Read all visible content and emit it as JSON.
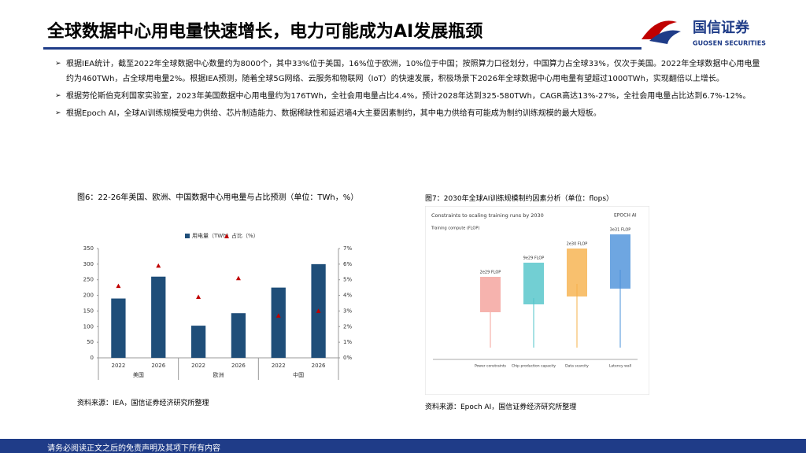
{
  "header": {
    "title": "全球数据中心用电量快速增长，电力可能成为AI发展瓶颈",
    "logo": "国信证券",
    "logo_en": "GUOSEN SECURITIES"
  },
  "bullets": [
    "根据IEA统计，截至2022年全球数据中心数量约为8000个，其中33%位于美国，16%位于欧洲，10%位于中国；按照算力口径划分，中国算力占全球33%，仅次于美国。2022年全球数据中心用电量约为460TWh，占全球用电量2%。根据IEA预测，随着全球5G网络、云服务和物联网（IoT）的快速发展，积极场景下2026年全球数据中心用电量有望超过1000TWh，实现翻倍以上增长。",
    "根据劳伦斯伯克利国家实验室，2023年美国数据中心用电量约为176TWh，全社会用电量占比4.4%，预计2028年达到325-580TWh，CAGR高达13%-27%，全社会用电量占比达到6.7%-12%。",
    "根据Epoch AI，全球AI训练规模受电力供给、芯片制造能力、数据稀缺性和延迟墙4大主要因素制约，其中电力供给有可能成为制约训练规模的最大短板。"
  ],
  "chart_data": {
    "type": "bar",
    "title": "图6：22-26年美国、欧洲、中国数据中心用电量与占比预测（单位：TWh，%）",
    "categories": [
      "2022",
      "2026",
      "2022",
      "2026",
      "2022",
      "2026"
    ],
    "groups": [
      "美国",
      "欧洲",
      "中国"
    ],
    "series": [
      {
        "name": "用电量（TWh）",
        "color": "#1f4e79",
        "values": [
          190,
          260,
          103,
          143,
          225,
          300
        ]
      },
      {
        "name": "占比（%）",
        "color": "#c00000",
        "axis": "y2",
        "values": [
          4.6,
          5.9,
          3.9,
          5.1,
          2.7,
          3.0
        ]
      }
    ],
    "ylim": [
      0,
      350
    ],
    "yticks": [
      0,
      50,
      100,
      150,
      200,
      250,
      300,
      350
    ],
    "y2lim": [
      0,
      7
    ],
    "y2ticks": [
      {
        "value": 0,
        "label": "0%"
      },
      {
        "value": 1,
        "label": "1%"
      },
      {
        "value": 2,
        "label": "2%"
      },
      {
        "value": 3,
        "label": "3%"
      },
      {
        "value": 4,
        "label": "4%"
      },
      {
        "value": 5,
        "label": "5%"
      },
      {
        "value": 6,
        "label": "6%"
      },
      {
        "value": 7,
        "label": "7%"
      }
    ],
    "source": "资料来源：IEA，国信证券经济研究所整理"
  },
  "figure7": {
    "title": "图7：2030年全球AI训练规模制约因素分析（单位：flops）",
    "image_title": "Constraints to scaling training runs by 2030",
    "brand": "EPOCH AI",
    "axis": "Training compute (FLOP)",
    "boxes": [
      {
        "label": "2e29 FLOP",
        "name": "Power constraints"
      },
      {
        "label": "9e29 FLOP",
        "name": "Chip production capacity"
      },
      {
        "label": "2e30 FLOP",
        "name": "Data scarcity"
      },
      {
        "label": "3e31 FLOP",
        "name": "Latency wall"
      }
    ],
    "source": "资料来源：Epoch AI，国信证券经济研究所整理"
  },
  "footer": "请务必阅读正文之后的免责声明及其项下所有内容"
}
